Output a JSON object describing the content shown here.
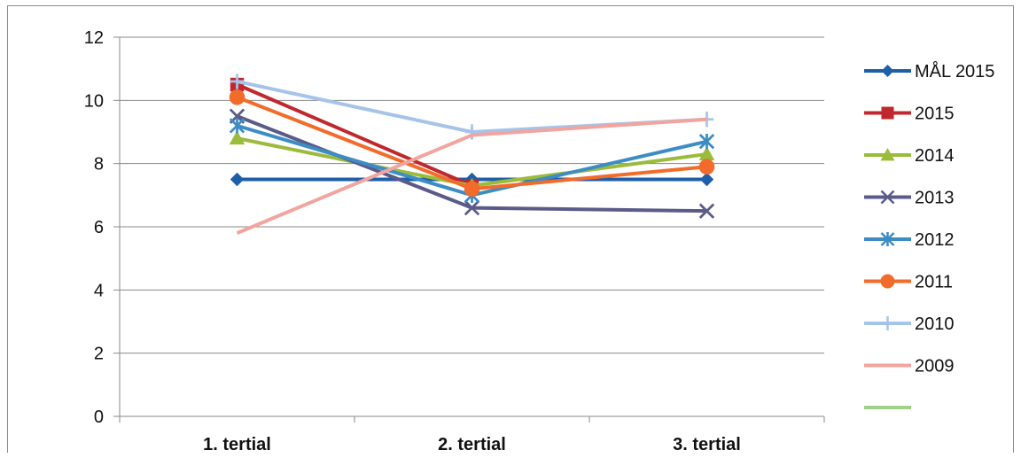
{
  "chart_data": {
    "type": "line",
    "categories": [
      "1. tertial",
      "2. tertial",
      "3. tertial"
    ],
    "ylim": [
      0,
      12
    ],
    "yticks": [
      "0",
      "2",
      "4",
      "6",
      "8",
      "10",
      "12"
    ],
    "grid": true,
    "legend_position": "right",
    "series": [
      {
        "name": "MÅL 2015",
        "values": [
          7.5,
          7.5,
          7.5
        ],
        "color": "#1f5fa8",
        "marker": "diamond"
      },
      {
        "name": "2015",
        "values": [
          10.5,
          7.3,
          null
        ],
        "color": "#c0282d",
        "marker": "square"
      },
      {
        "name": "2014",
        "values": [
          8.8,
          7.3,
          8.3
        ],
        "color": "#9bbb3b",
        "marker": "triangle"
      },
      {
        "name": "2013",
        "values": [
          9.5,
          6.6,
          6.5
        ],
        "color": "#5b5b8a",
        "marker": "x"
      },
      {
        "name": "2012",
        "values": [
          9.2,
          7.0,
          8.7
        ],
        "color": "#3c8dc4",
        "marker": "star"
      },
      {
        "name": "2011",
        "values": [
          10.1,
          7.2,
          7.9
        ],
        "color": "#f26b2b",
        "marker": "circle"
      },
      {
        "name": "2010",
        "values": [
          10.6,
          9.0,
          9.4
        ],
        "color": "#a6c4ea",
        "marker": "plus"
      },
      {
        "name": "2009",
        "values": [
          5.8,
          8.9,
          9.4
        ],
        "color": "#f2a49e",
        "marker": "none"
      },
      {
        "name": "",
        "values": [
          null,
          null,
          null
        ],
        "color": "#9fd18b",
        "marker": "none"
      }
    ]
  }
}
